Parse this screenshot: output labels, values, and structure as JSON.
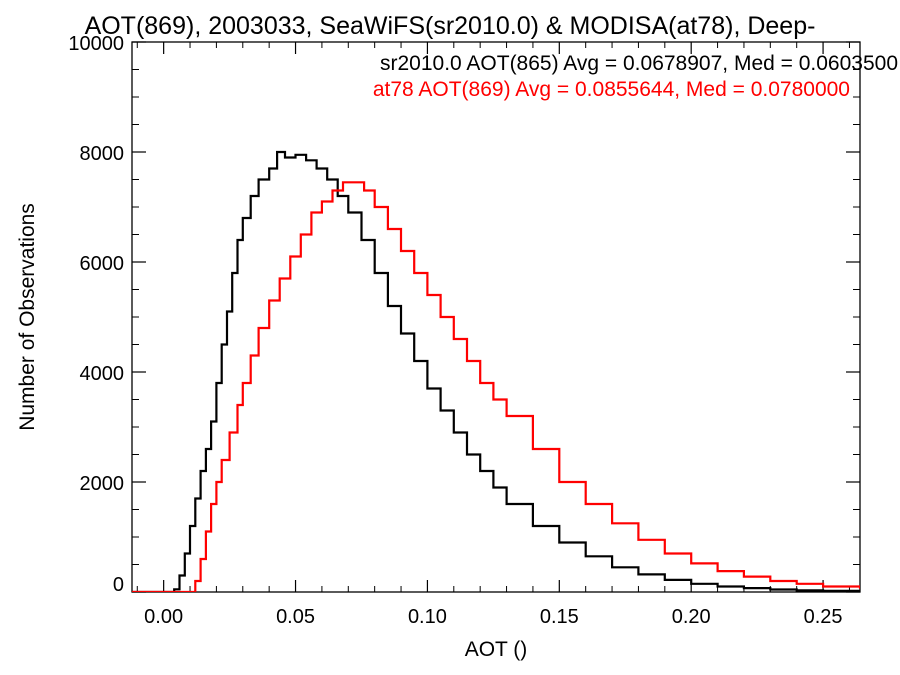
{
  "chart_data": {
    "type": "line",
    "title": "AOT(869), 2003033, SeaWiFS(sr2010.0) & MODISA(at78), Deep-",
    "xlabel": "AOT ()",
    "ylabel": "Number of Observations",
    "xlim": [
      -0.012,
      0.264
    ],
    "ylim": [
      0,
      10000
    ],
    "x_ticks": [
      "0.00",
      "0.05",
      "0.10",
      "0.15",
      "0.20",
      "0.25"
    ],
    "y_ticks": [
      "0",
      "2000",
      "4000",
      "6000",
      "8000",
      "10000"
    ],
    "grid": false,
    "legend_position": "top-right",
    "step": true,
    "series": [
      {
        "name": "sr2010.0 AOT(865) Avg = 0.0678907, Med = 0.0603500",
        "color": "#000000",
        "points": [
          [
            -0.012,
            0
          ],
          [
            0.0,
            0
          ],
          [
            0.004,
            50
          ],
          [
            0.006,
            300
          ],
          [
            0.008,
            700
          ],
          [
            0.01,
            1200
          ],
          [
            0.012,
            1700
          ],
          [
            0.014,
            2200
          ],
          [
            0.016,
            2600
          ],
          [
            0.018,
            3100
          ],
          [
            0.02,
            3800
          ],
          [
            0.022,
            4500
          ],
          [
            0.024,
            5100
          ],
          [
            0.026,
            5800
          ],
          [
            0.028,
            6400
          ],
          [
            0.03,
            6800
          ],
          [
            0.033,
            7200
          ],
          [
            0.036,
            7500
          ],
          [
            0.04,
            7700
          ],
          [
            0.043,
            8000
          ],
          [
            0.046,
            7900
          ],
          [
            0.05,
            7950
          ],
          [
            0.054,
            7850
          ],
          [
            0.058,
            7700
          ],
          [
            0.062,
            7500
          ],
          [
            0.066,
            7200
          ],
          [
            0.07,
            6900
          ],
          [
            0.075,
            6400
          ],
          [
            0.08,
            5800
          ],
          [
            0.085,
            5200
          ],
          [
            0.09,
            4700
          ],
          [
            0.095,
            4200
          ],
          [
            0.1,
            3700
          ],
          [
            0.105,
            3300
          ],
          [
            0.11,
            2900
          ],
          [
            0.115,
            2500
          ],
          [
            0.12,
            2200
          ],
          [
            0.125,
            1900
          ],
          [
            0.13,
            1600
          ],
          [
            0.14,
            1200
          ],
          [
            0.15,
            900
          ],
          [
            0.16,
            650
          ],
          [
            0.17,
            450
          ],
          [
            0.18,
            320
          ],
          [
            0.19,
            220
          ],
          [
            0.2,
            150
          ],
          [
            0.21,
            100
          ],
          [
            0.22,
            70
          ],
          [
            0.23,
            45
          ],
          [
            0.24,
            30
          ],
          [
            0.25,
            20
          ],
          [
            0.264,
            10
          ]
        ]
      },
      {
        "name": "at78 AOT(869) Avg = 0.0855644, Med = 0.0780000",
        "color": "#ff0000",
        "points": [
          [
            -0.012,
            0
          ],
          [
            0.01,
            0
          ],
          [
            0.012,
            200
          ],
          [
            0.014,
            600
          ],
          [
            0.016,
            1100
          ],
          [
            0.018,
            1600
          ],
          [
            0.02,
            2000
          ],
          [
            0.022,
            2400
          ],
          [
            0.025,
            2900
          ],
          [
            0.028,
            3400
          ],
          [
            0.03,
            3800
          ],
          [
            0.033,
            4300
          ],
          [
            0.036,
            4800
          ],
          [
            0.04,
            5300
          ],
          [
            0.044,
            5700
          ],
          [
            0.048,
            6100
          ],
          [
            0.052,
            6500
          ],
          [
            0.056,
            6900
          ],
          [
            0.06,
            7100
          ],
          [
            0.064,
            7300
          ],
          [
            0.068,
            7450
          ],
          [
            0.072,
            7450
          ],
          [
            0.076,
            7300
          ],
          [
            0.08,
            7000
          ],
          [
            0.085,
            6600
          ],
          [
            0.09,
            6200
          ],
          [
            0.095,
            5800
          ],
          [
            0.1,
            5400
          ],
          [
            0.105,
            5000
          ],
          [
            0.11,
            4600
          ],
          [
            0.115,
            4200
          ],
          [
            0.12,
            3800
          ],
          [
            0.125,
            3500
          ],
          [
            0.13,
            3200
          ],
          [
            0.14,
            2600
          ],
          [
            0.15,
            2000
          ],
          [
            0.16,
            1600
          ],
          [
            0.17,
            1250
          ],
          [
            0.18,
            950
          ],
          [
            0.19,
            700
          ],
          [
            0.2,
            520
          ],
          [
            0.21,
            380
          ],
          [
            0.22,
            280
          ],
          [
            0.23,
            200
          ],
          [
            0.24,
            150
          ],
          [
            0.25,
            100
          ],
          [
            0.264,
            60
          ]
        ]
      }
    ]
  }
}
